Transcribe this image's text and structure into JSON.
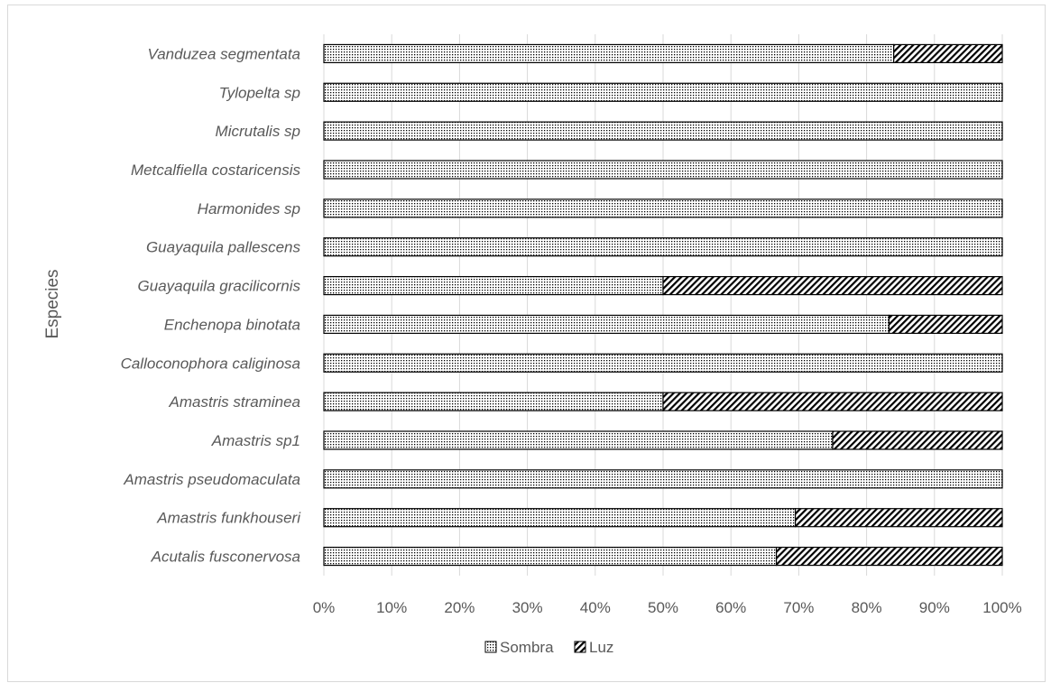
{
  "chart_data": {
    "type": "bar",
    "orientation": "horizontal",
    "stacked": "percent",
    "title": "",
    "xlabel": "",
    "ylabel": "Especies",
    "xlim": [
      0,
      100
    ],
    "x_ticks": [
      "0%",
      "10%",
      "20%",
      "30%",
      "40%",
      "50%",
      "60%",
      "70%",
      "80%",
      "90%",
      "100%"
    ],
    "grid": "vertical",
    "legend_position": "bottom",
    "categories": [
      "Vanduzea segmentata",
      "Tylopelta sp",
      "Micrutalis sp",
      "Metcalfiella costaricensis",
      "Harmonides sp",
      "Guayaquila pallescens",
      "Guayaquila gracilicornis",
      "Enchenopa binotata",
      "Calloconophora caliginosa",
      "Amastris straminea",
      "Amastris sp1",
      "Amastris pseudomaculata",
      "Amastris funkhouseri",
      "Acutalis fusconervosa"
    ],
    "series": [
      {
        "name": "Sombra",
        "pattern": "dots",
        "values": [
          84,
          100,
          100,
          100,
          100,
          100,
          50,
          83.3,
          100,
          50,
          75,
          100,
          69.5,
          66.7
        ]
      },
      {
        "name": "Luz",
        "pattern": "diagonal-hatch",
        "values": [
          16,
          0,
          0,
          0,
          0,
          0,
          50,
          16.7,
          0,
          50,
          25,
          0,
          30.5,
          33.3
        ]
      }
    ],
    "colors": {
      "pattern_ink": "#000000",
      "bar_background": "#ffffff",
      "grid": "#d9d9d9",
      "text": "#595959"
    }
  }
}
